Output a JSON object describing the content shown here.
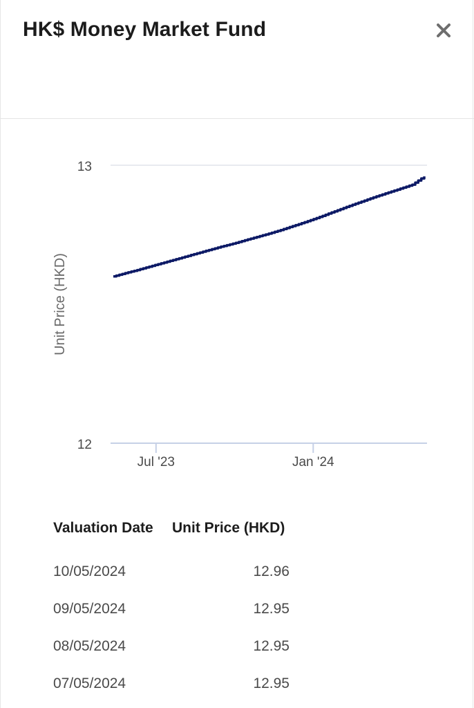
{
  "header": {
    "title": "HK$ Money Market Fund",
    "close_icon": "close-icon"
  },
  "chart_data": {
    "type": "line",
    "ylabel": "Unit Price (HKD)",
    "xlabel": "",
    "ylim": [
      12,
      13
    ],
    "y_ticks": [
      "13",
      "12"
    ],
    "x_ticks": [
      {
        "label": "Jul '23",
        "date": "2023-07-01"
      },
      {
        "label": "Jan '24",
        "date": "2024-01-01"
      }
    ],
    "line_color": "#0d1a66",
    "grid": "horizontal",
    "series": [
      {
        "x": [
          "2023-05-12",
          "2023-05-26",
          "2023-06-09",
          "2023-06-23",
          "2023-07-07",
          "2023-07-21",
          "2023-08-04",
          "2023-08-18",
          "2023-09-01",
          "2023-09-15",
          "2023-09-29",
          "2023-10-13",
          "2023-10-27",
          "2023-11-10",
          "2023-11-24",
          "2023-12-08",
          "2023-12-22",
          "2024-01-05",
          "2024-01-19",
          "2024-02-02",
          "2024-02-16",
          "2024-03-01",
          "2024-03-15",
          "2024-03-29",
          "2024-04-12",
          "2024-04-26",
          "2024-05-10"
        ],
        "values": [
          12.6,
          12.612,
          12.623,
          12.635,
          12.647,
          12.659,
          12.671,
          12.683,
          12.695,
          12.707,
          12.718,
          12.73,
          12.742,
          12.754,
          12.767,
          12.781,
          12.795,
          12.81,
          12.826,
          12.842,
          12.858,
          12.873,
          12.888,
          12.902,
          12.916,
          12.93,
          12.96
        ]
      }
    ]
  },
  "table": {
    "headers": {
      "date": "Valuation Date",
      "price": "Unit Price (HKD)"
    },
    "rows": [
      {
        "date": "10/05/2024",
        "price": "12.96"
      },
      {
        "date": "09/05/2024",
        "price": "12.95"
      },
      {
        "date": "08/05/2024",
        "price": "12.95"
      },
      {
        "date": "07/05/2024",
        "price": "12.95"
      }
    ]
  }
}
